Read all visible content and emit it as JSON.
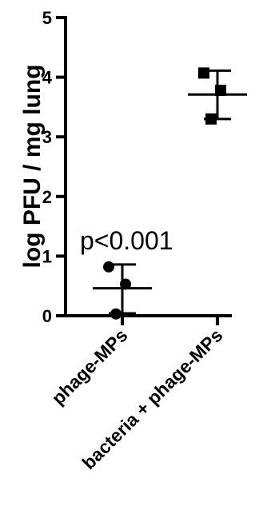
{
  "chart_data": {
    "type": "scatter",
    "ylabel": "log PFU / mg lung",
    "ylim": [
      0,
      5
    ],
    "yticks": [
      0,
      1,
      2,
      3,
      4,
      5
    ],
    "categories": [
      "phage-MPs",
      "bacteria + phage-MPs"
    ],
    "series": [
      {
        "category": "phage-MPs",
        "marker": "circle",
        "points": [
          0.82,
          0.53,
          0.03
        ],
        "mean": 0.46,
        "sd_upper": 0.86,
        "sd_lower": 0.04
      },
      {
        "category": "bacteria + phage-MPs",
        "marker": "square",
        "points": [
          4.07,
          3.78,
          3.3
        ],
        "mean": 3.71,
        "sd_upper": 4.11,
        "sd_lower": 3.3
      }
    ],
    "annotations": [
      "p<0.001"
    ],
    "grid": false,
    "marker_color": "#000000"
  }
}
